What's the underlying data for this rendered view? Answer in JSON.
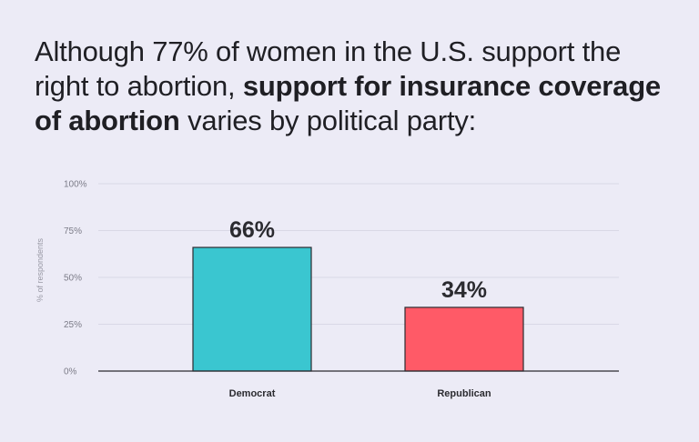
{
  "headline": {
    "part1": "Although 77% of women in the U.S. support the right to abortion, ",
    "bold": "support for insurance coverage of abortion",
    "part2": " varies by political party:"
  },
  "chart_data": {
    "type": "bar",
    "title": "",
    "xlabel": "",
    "ylabel": "% of respondents",
    "categories": [
      "Democrat",
      "Republican"
    ],
    "values": [
      66,
      34
    ],
    "value_labels": [
      "66%",
      "34%"
    ],
    "colors": [
      "#3ac6d0",
      "#ff5a67"
    ],
    "ylim": [
      0,
      100
    ],
    "yticks": [
      0,
      25,
      50,
      75,
      100
    ],
    "ytick_labels": [
      "0%",
      "25%",
      "50%",
      "75%",
      "100%"
    ],
    "grid": true
  }
}
